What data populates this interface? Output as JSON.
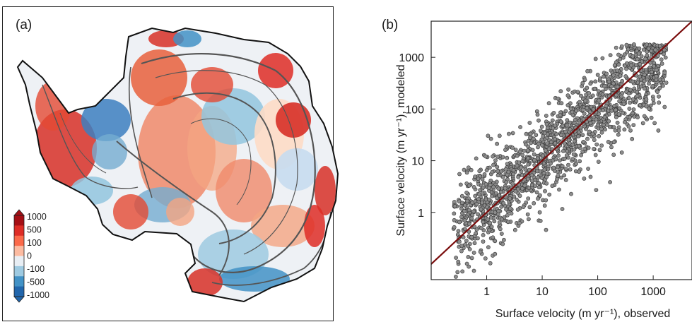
{
  "panel_a": {
    "label": "(a)",
    "colorbar_ticks": [
      "1000",
      "500",
      "100",
      "0",
      "-100",
      "-500",
      "-1000"
    ],
    "colorbar_colors": [
      "#a50f15",
      "#de2d26",
      "#fb6a4a",
      "#fcbba1",
      "#e8eef4",
      "#9ecae1",
      "#4292c6",
      "#2166ac"
    ]
  },
  "panel_b": {
    "label": "(b)"
  },
  "chart_data": {
    "type": "scatter",
    "xlabel": "Surface velocity (m yr⁻¹), observed",
    "ylabel": "Surface velocity (m yr⁻¹), modeled",
    "xscale": "log",
    "yscale": "log",
    "xlim": [
      0.1,
      5000
    ],
    "ylim": [
      0.05,
      5000
    ],
    "xticks": [
      1,
      10,
      100,
      1000
    ],
    "xtick_labels": [
      "1",
      "10",
      "100",
      "1000"
    ],
    "yticks": [
      1,
      10,
      100,
      1000
    ],
    "ytick_labels": [
      "1",
      "10",
      "100",
      "1000"
    ],
    "reference_line": "1:1",
    "point_color": "#8c8c8c",
    "line_color": "#7a0c0c"
  }
}
